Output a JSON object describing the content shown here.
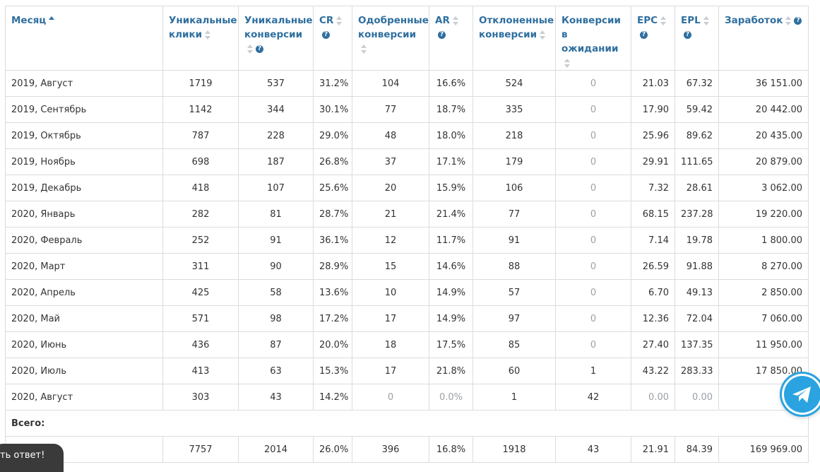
{
  "table": {
    "columns": [
      {
        "label": "Месяц",
        "sort": "asc",
        "help": false
      },
      {
        "label": "Уникальные клики",
        "sort": "none",
        "help": false
      },
      {
        "label": "Уникальные конверсии",
        "sort": "none",
        "help": true
      },
      {
        "label": "CR",
        "sort": "none",
        "help": true
      },
      {
        "label": "Одобренные конверсии",
        "sort": "none",
        "help": false
      },
      {
        "label": "AR",
        "sort": "none",
        "help": true
      },
      {
        "label": "Отклоненные конверсии",
        "sort": "none",
        "help": false
      },
      {
        "label": "Конверсии в ожидании",
        "sort": "none",
        "help": false
      },
      {
        "label": "EPC",
        "sort": "none",
        "help": true
      },
      {
        "label": "EPL",
        "sort": "none",
        "help": true
      },
      {
        "label": "Заработок",
        "sort": "none",
        "help": true
      }
    ],
    "rows": [
      [
        "2019, Август",
        "1719",
        "537",
        "31.2%",
        "104",
        "16.6%",
        "524",
        "0",
        "21.03",
        "67.32",
        "36 151.00"
      ],
      [
        "2019, Сентябрь",
        "1142",
        "344",
        "30.1%",
        "77",
        "18.7%",
        "335",
        "0",
        "17.90",
        "59.42",
        "20 442.00"
      ],
      [
        "2019, Октябрь",
        "787",
        "228",
        "29.0%",
        "48",
        "18.0%",
        "218",
        "0",
        "25.96",
        "89.62",
        "20 435.00"
      ],
      [
        "2019, Ноябрь",
        "698",
        "187",
        "26.8%",
        "37",
        "17.1%",
        "179",
        "0",
        "29.91",
        "111.65",
        "20 879.00"
      ],
      [
        "2019, Декабрь",
        "418",
        "107",
        "25.6%",
        "20",
        "15.9%",
        "106",
        "0",
        "7.32",
        "28.61",
        "3 062.00"
      ],
      [
        "2020, Январь",
        "282",
        "81",
        "28.7%",
        "21",
        "21.4%",
        "77",
        "0",
        "68.15",
        "237.28",
        "19 220.00"
      ],
      [
        "2020, Февраль",
        "252",
        "91",
        "36.1%",
        "12",
        "11.7%",
        "91",
        "0",
        "7.14",
        "19.78",
        "1 800.00"
      ],
      [
        "2020, Март",
        "311",
        "90",
        "28.9%",
        "15",
        "14.6%",
        "88",
        "0",
        "26.59",
        "91.88",
        "8 270.00"
      ],
      [
        "2020, Апрель",
        "425",
        "58",
        "13.6%",
        "10",
        "14.9%",
        "57",
        "0",
        "6.70",
        "49.13",
        "2 850.00"
      ],
      [
        "2020, Май",
        "571",
        "98",
        "17.2%",
        "17",
        "14.9%",
        "97",
        "0",
        "12.36",
        "72.04",
        "7 060.00"
      ],
      [
        "2020, Июнь",
        "436",
        "87",
        "20.0%",
        "18",
        "17.5%",
        "85",
        "0",
        "27.40",
        "137.35",
        "11 950.00"
      ],
      [
        "2020, Июль",
        "413",
        "63",
        "15.3%",
        "17",
        "21.8%",
        "60",
        "1",
        "43.22",
        "283.33",
        "17 850.00"
      ],
      [
        "2020, Август",
        "303",
        "43",
        "14.2%",
        "0",
        "0.0%",
        "1",
        "42",
        "0.00",
        "0.00",
        ""
      ]
    ],
    "total_label": "Всего:",
    "totals": [
      "",
      "7757",
      "2014",
      "26.0%",
      "396",
      "16.8%",
      "1918",
      "43",
      "21.91",
      "84.39",
      "169 969.00"
    ]
  },
  "feedback_tab": {
    "label": "ть ответ!"
  },
  "colors": {
    "accent": "#2f6f9f",
    "telegram": "#2aa3e0",
    "muted": "#9aa0a6"
  }
}
